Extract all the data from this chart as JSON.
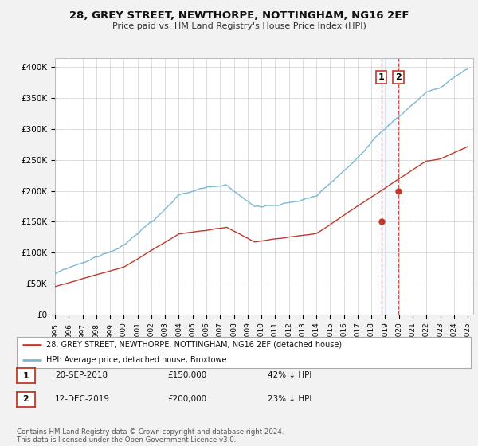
{
  "title": "28, GREY STREET, NEWTHORPE, NOTTINGHAM, NG16 2EF",
  "subtitle": "Price paid vs. HM Land Registry's House Price Index (HPI)",
  "ylabel_ticks": [
    "£0",
    "£50K",
    "£100K",
    "£150K",
    "£200K",
    "£250K",
    "£300K",
    "£350K",
    "£400K"
  ],
  "ytick_vals": [
    0,
    50000,
    100000,
    150000,
    200000,
    250000,
    300000,
    350000,
    400000
  ],
  "ylim": [
    0,
    415000
  ],
  "sale1_date": "20-SEP-2018",
  "sale1_price": "£150,000",
  "sale1_pct": "42% ↓ HPI",
  "sale1_year": 2018.72,
  "sale1_val": 150000,
  "sale2_date": "12-DEC-2019",
  "sale2_price": "£200,000",
  "sale2_pct": "23% ↓ HPI",
  "sale2_year": 2019.95,
  "sale2_val": 200000,
  "hpi_color": "#7bb8d4",
  "price_color": "#c0392b",
  "legend_label1": "28, GREY STREET, NEWTHORPE, NOTTINGHAM, NG16 2EF (detached house)",
  "legend_label2": "HPI: Average price, detached house, Broxtowe",
  "footer": "Contains HM Land Registry data © Crown copyright and database right 2024.\nThis data is licensed under the Open Government Licence v3.0.",
  "bg_color": "#f2f2f2",
  "plot_bg": "#ffffff",
  "shade_color": "#ddeeff"
}
